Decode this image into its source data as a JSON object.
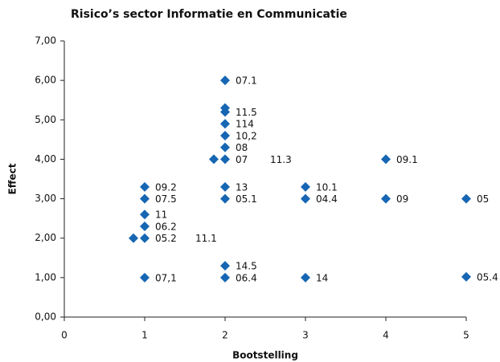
{
  "chart_data": {
    "type": "scatter",
    "title": "Risico’s sector Informatie en Communicatie",
    "x_label": "Bootstelling",
    "y_label": "Effect",
    "color": "#1666b3",
    "x": [
      2,
      2,
      2,
      2,
      2,
      2,
      1.86,
      2,
      2,
      2,
      2,
      2,
      1,
      1,
      1,
      1,
      1,
      0.86,
      1,
      3,
      3,
      3,
      4,
      4,
      5,
      5
    ],
    "y": [
      6.0,
      5.3,
      5.2,
      4.9,
      4.6,
      4.3,
      4.0,
      4.0,
      3.3,
      3.0,
      1.3,
      1.0,
      3.3,
      3.0,
      2.6,
      2.3,
      2.0,
      2.0,
      1.0,
      3.3,
      3.0,
      1.0,
      4.0,
      3.0,
      3.0,
      1.02
    ],
    "point_labels": [
      "07.1",
      null,
      "11.5",
      "114",
      "10,2",
      "08",
      null,
      "07",
      "13",
      "05.1",
      "14.5",
      "06.4",
      "09.2",
      "07.5",
      "11",
      "06.2",
      "05.2",
      null,
      "07,1",
      "10.1",
      "04.4",
      "14",
      "09.1",
      "09",
      "05",
      "05.4"
    ],
    "annotations": [
      {
        "text": "11.3",
        "x": 2.56,
        "y": 4.0
      },
      {
        "text": "11.1",
        "x": 1.63,
        "y": 2.0
      }
    ],
    "xlim": [
      0,
      5
    ],
    "ylim": [
      0,
      7
    ],
    "xticks": [
      0,
      1,
      2,
      3,
      4,
      5
    ],
    "yticks": [
      {
        "value": 0,
        "label": "0,00"
      },
      {
        "value": 1,
        "label": "1,00"
      },
      {
        "value": 2,
        "label": "2,00"
      },
      {
        "value": 3,
        "label": "3,00"
      },
      {
        "value": 4,
        "label": "4,00"
      },
      {
        "value": 5,
        "label": "5,00"
      },
      {
        "value": 6,
        "label": "6,00"
      },
      {
        "value": 7,
        "label": "7,00"
      }
    ],
    "grid": false
  }
}
